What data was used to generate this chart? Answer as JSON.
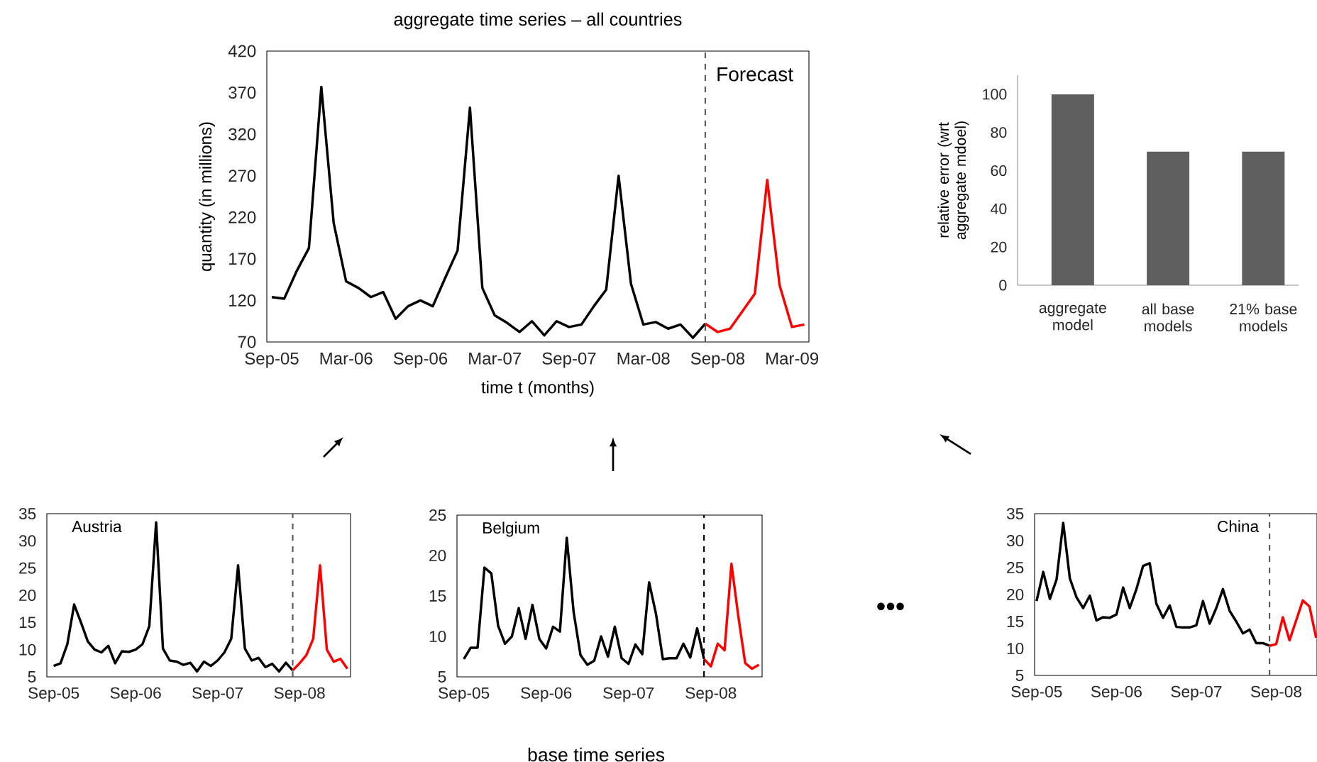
{
  "chart_data": [
    {
      "type": "line",
      "title": "aggregate time series – all countries",
      "xlabel": "time t (months)",
      "ylabel": "quantity (in millions)",
      "annotations": [
        "Forecast"
      ],
      "xlim": [
        "2005-08-19",
        "2009-04-12"
      ],
      "ylim": [
        70,
        420
      ],
      "yticks": [
        70,
        120,
        170,
        220,
        270,
        320,
        370,
        420
      ],
      "xticks": [
        {
          "value": "2005-09",
          "label": "Sep-05"
        },
        {
          "value": "2006-03",
          "label": "Mar-06"
        },
        {
          "value": "2006-09",
          "label": "Sep-06"
        },
        {
          "value": "2007-03",
          "label": "Mar-07"
        },
        {
          "value": "2007-09",
          "label": "Sep-07"
        },
        {
          "value": "2008-03",
          "label": "Mar-08"
        },
        {
          "value": "2008-09",
          "label": "Sep-08"
        },
        {
          "value": "2009-03",
          "label": "Mar-09"
        }
      ],
      "ref_lines": [
        {
          "axis": "x",
          "value": "2008-08",
          "color": "#595959",
          "line_style": "dashed"
        }
      ],
      "series": [
        {
          "color": "#000000",
          "x": [
            "2005-09",
            "2005-10",
            "2005-11",
            "2005-12",
            "2006-01",
            "2006-02",
            "2006-03",
            "2006-04",
            "2006-05",
            "2006-06",
            "2006-07",
            "2006-08",
            "2006-09",
            "2006-10",
            "2006-11",
            "2006-12",
            "2007-01",
            "2007-02",
            "2007-03",
            "2007-04",
            "2007-05",
            "2007-06",
            "2007-07",
            "2007-08",
            "2007-09",
            "2007-10",
            "2007-11",
            "2007-12",
            "2008-01",
            "2008-02",
            "2008-03",
            "2008-04",
            "2008-05",
            "2008-06",
            "2008-07",
            "2008-08"
          ],
          "values": [
            124,
            122,
            155,
            183,
            377,
            213,
            143,
            135,
            124,
            130,
            98,
            113,
            120,
            113,
            147,
            180,
            352,
            135,
            102,
            93,
            82,
            95,
            78,
            95,
            88,
            91,
            113,
            133,
            270,
            140,
            91,
            94,
            86,
            91,
            75,
            92
          ]
        },
        {
          "color": "#ff0000",
          "x": [
            "2008-08",
            "2008-09",
            "2008-10",
            "2008-11",
            "2008-12",
            "2009-01",
            "2009-02",
            "2009-03",
            "2009-04"
          ],
          "values": [
            92,
            82,
            86,
            107,
            128,
            265,
            138,
            88,
            91
          ]
        }
      ]
    },
    {
      "type": "bar",
      "ylabel": "relative error (wrt aggregate mdoel)",
      "categories": [
        "aggregate model",
        "all base models",
        "21% base models"
      ],
      "values": [
        100,
        70,
        70
      ],
      "color": "#5f5f5f",
      "ylim": [
        0,
        110
      ],
      "yticks": [
        0,
        20,
        40,
        60,
        80,
        100
      ]
    },
    {
      "type": "line",
      "title": "Austria",
      "xlim": [
        "2005-08",
        "2009-04-15"
      ],
      "ylim": [
        5,
        35
      ],
      "yticks": [
        5,
        10,
        15,
        20,
        25,
        30,
        35
      ],
      "xticks": [
        {
          "value": "2005-09",
          "label": "Sep-05"
        },
        {
          "value": "2006-09",
          "label": "Sep-06"
        },
        {
          "value": "2007-09",
          "label": "Sep-07"
        },
        {
          "value": "2008-09",
          "label": "Sep-08"
        }
      ],
      "ref_lines": [
        {
          "axis": "x",
          "value": "2008-08",
          "color": "#595959",
          "line_style": "dashed"
        }
      ],
      "series": [
        {
          "color": "#000000",
          "x": [
            "2005-09",
            "2005-10",
            "2005-11",
            "2005-12",
            "2006-01",
            "2006-02",
            "2006-03",
            "2006-04",
            "2006-05",
            "2006-06",
            "2006-07",
            "2006-08",
            "2006-09",
            "2006-10",
            "2006-11",
            "2006-12",
            "2007-01",
            "2007-02",
            "2007-03",
            "2007-04",
            "2007-05",
            "2007-06",
            "2007-07",
            "2007-08",
            "2007-09",
            "2007-10",
            "2007-11",
            "2007-12",
            "2008-01",
            "2008-02",
            "2008-03",
            "2008-04",
            "2008-05",
            "2008-06",
            "2008-07",
            "2008-08"
          ],
          "values": [
            7.0,
            7.5,
            11,
            18.3,
            15,
            11.5,
            10,
            9.5,
            10.7,
            7.5,
            9.7,
            9.6,
            10,
            11,
            14.3,
            33.4,
            10.2,
            8,
            7.8,
            7.2,
            7.6,
            6,
            7.8,
            7,
            8,
            9.5,
            12,
            25.5,
            10.2,
            8,
            8.5,
            6.8,
            7.4,
            6,
            7.6,
            6.2
          ]
        },
        {
          "color": "#ff0000",
          "x": [
            "2008-08",
            "2008-09",
            "2008-10",
            "2008-11",
            "2008-12",
            "2009-01",
            "2009-02",
            "2009-03",
            "2009-04"
          ],
          "values": [
            6.2,
            7.5,
            9,
            12,
            25.5,
            10,
            7.8,
            8.3,
            6.5
          ]
        }
      ]
    },
    {
      "type": "line",
      "title": "Belgium",
      "annotations": [
        "base time series"
      ],
      "xlim": [
        "2005-08",
        "2009-04-15"
      ],
      "ylim": [
        5,
        25
      ],
      "yticks": [
        5,
        10,
        15,
        20,
        25
      ],
      "xticks": [
        {
          "value": "2005-09",
          "label": "Sep-05"
        },
        {
          "value": "2006-09",
          "label": "Sep-06"
        },
        {
          "value": "2007-09",
          "label": "Sep-07"
        },
        {
          "value": "2008-09",
          "label": "Sep-08"
        }
      ],
      "ref_lines": [
        {
          "axis": "x",
          "value": "2008-08",
          "color": "#000000",
          "line_style": "dashed"
        }
      ],
      "series": [
        {
          "color": "#000000",
          "x": [
            "2005-09",
            "2005-10",
            "2005-11",
            "2005-12",
            "2006-01",
            "2006-02",
            "2006-03",
            "2006-04",
            "2006-05",
            "2006-06",
            "2006-07",
            "2006-08",
            "2006-09",
            "2006-10",
            "2006-11",
            "2006-12",
            "2007-01",
            "2007-02",
            "2007-03",
            "2007-04",
            "2007-05",
            "2007-06",
            "2007-07",
            "2007-08",
            "2007-09",
            "2007-10",
            "2007-11",
            "2007-12",
            "2008-01",
            "2008-02",
            "2008-03",
            "2008-04",
            "2008-05",
            "2008-06",
            "2008-07",
            "2008-08"
          ],
          "values": [
            7.2,
            8.6,
            8.6,
            18.5,
            17.8,
            11.3,
            9.1,
            10,
            13.5,
            9.7,
            13.9,
            9.7,
            8.5,
            11.2,
            10.6,
            22.2,
            13,
            7.7,
            6.5,
            7,
            10,
            7.5,
            11.2,
            7.3,
            6.6,
            9,
            7.8,
            16.7,
            12.8,
            7.2,
            7.3,
            7.3,
            9.1,
            7.4,
            11,
            7.2
          ]
        },
        {
          "color": "#ff0000",
          "x": [
            "2008-08",
            "2008-09",
            "2008-10",
            "2008-11",
            "2008-12",
            "2009-01",
            "2009-02",
            "2009-03",
            "2009-04"
          ],
          "values": [
            7.2,
            6.3,
            9.1,
            8.3,
            19,
            12.5,
            6.7,
            6,
            6.5
          ]
        }
      ]
    },
    {
      "type": "line",
      "title": "China",
      "annotations": [
        "•••"
      ],
      "xlim": [
        "2005-08-22",
        "2009-03-05"
      ],
      "ylim": [
        5,
        35
      ],
      "yticks": [
        5,
        10,
        15,
        20,
        25,
        30,
        35
      ],
      "xticks": [
        {
          "value": "2005-09",
          "label": "Sep-05"
        },
        {
          "value": "2006-09",
          "label": "Sep-06"
        },
        {
          "value": "2007-09",
          "label": "Sep-07"
        },
        {
          "value": "2008-09",
          "label": "Sep-08"
        }
      ],
      "ref_lines": [
        {
          "axis": "x",
          "value": "2008-08",
          "color": "#595959",
          "line_style": "dashed"
        }
      ],
      "series": [
        {
          "color": "#000000",
          "x": [
            "2005-09",
            "2005-10",
            "2005-11",
            "2005-12",
            "2006-01",
            "2006-02",
            "2006-03",
            "2006-04",
            "2006-05",
            "2006-06",
            "2006-07",
            "2006-08",
            "2006-09",
            "2006-10",
            "2006-11",
            "2006-12",
            "2007-01",
            "2007-02",
            "2007-03",
            "2007-04",
            "2007-05",
            "2007-06",
            "2007-07",
            "2007-08",
            "2007-09",
            "2007-10",
            "2007-11",
            "2007-12",
            "2008-01",
            "2008-02",
            "2008-03",
            "2008-04",
            "2008-05",
            "2008-06",
            "2008-07",
            "2008-08"
          ],
          "values": [
            18.8,
            24.2,
            19.2,
            22.8,
            33.3,
            23,
            19.5,
            17.5,
            19.8,
            15.2,
            15.8,
            15.7,
            16.3,
            21.3,
            17.5,
            21,
            25.3,
            25.8,
            18.3,
            15.7,
            18,
            14,
            13.9,
            13.9,
            14.3,
            18.8,
            14.6,
            17.5,
            21,
            17,
            15,
            12.8,
            13.5,
            11,
            11,
            10.5
          ]
        },
        {
          "color": "#ff0000",
          "x": [
            "2008-08",
            "2008-09",
            "2008-10",
            "2008-11",
            "2008-12",
            "2009-01",
            "2009-02",
            "2009-03"
          ],
          "values": [
            10.5,
            10.8,
            15.8,
            11.5,
            15.2,
            18.9,
            17.8,
            12
          ]
        }
      ]
    }
  ]
}
